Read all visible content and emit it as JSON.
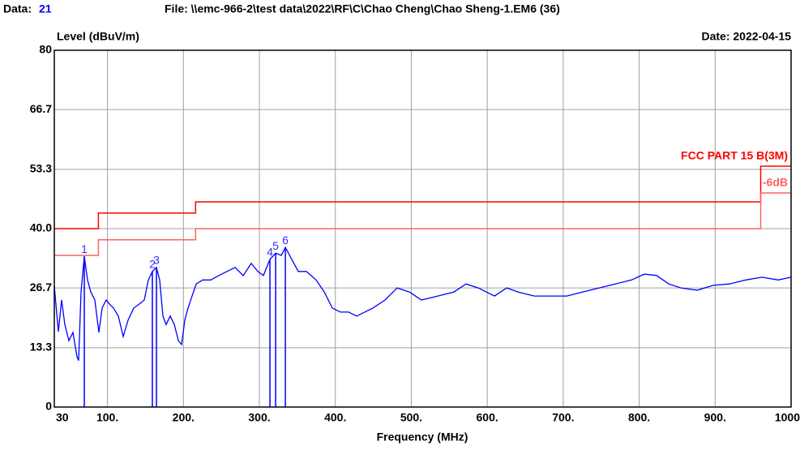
{
  "chart_data": {
    "type": "line",
    "data_label": "Data:",
    "data_number": "21",
    "file": "File: \\\\emc-966-2\\test data\\2022\\RF\\C\\Chao Cheng\\Chao Sheng-1.EM6  (36)",
    "date": "Date: 2022-04-15",
    "y_label": "Level (dBuV/m)",
    "x_label": "Frequency (MHz)",
    "xlim": [
      30,
      1000
    ],
    "ylim": [
      0,
      80
    ],
    "xticks": [
      30,
      {
        "value": 100,
        "label": "100."
      },
      {
        "value": 200,
        "label": "200."
      },
      {
        "value": 300,
        "label": "300."
      },
      {
        "value": 400,
        "label": "400."
      },
      {
        "value": 500,
        "label": "500."
      },
      {
        "value": 600,
        "label": "600."
      },
      {
        "value": 700,
        "label": "700."
      },
      {
        "value": 800,
        "label": "800."
      },
      {
        "value": 900,
        "label": "900."
      },
      1000
    ],
    "yticks": [
      0,
      13.3,
      26.7,
      {
        "value": 40,
        "label": "40.0"
      },
      53.3,
      66.7,
      80
    ],
    "grid": true,
    "series": [
      {
        "color": "#0000ff",
        "x": [
          30.0,
          35.3,
          39.6,
          43.9,
          49.2,
          54.5,
          59.9,
          62.0,
          65.2,
          69.5,
          73.8,
          78.0,
          83.4,
          88.7,
          93.0,
          98.3,
          102.6,
          107.9,
          114.3,
          120.7,
          127.1,
          134.6,
          142.1,
          148.5,
          153.8,
          159.1,
          164.5,
          168.7,
          173.0,
          177.3,
          182.6,
          188.0,
          193.3,
          197.6,
          201.8,
          206.1,
          211.4,
          216.8,
          225.3,
          236.0,
          246.6,
          257.3,
          268.0,
          278.7,
          289.3,
          297.9,
          305.3,
          313.9,
          321.4,
          328.8,
          334.2,
          342.7,
          351.2,
          361.9,
          374.7,
          385.4,
          396.0,
          406.7,
          417.4,
          428.1,
          438.7,
          449.4,
          465.4,
          481.4,
          497.4,
          513.4,
          534.8,
          556.1,
          572.1,
          588.1,
          609.5,
          625.5,
          640.5,
          661.9,
          683.2,
          704.5,
          725.9,
          747.2,
          768.6,
          789.9,
          806.9,
          823.0,
          839.0,
          855.0,
          876.3,
          897.7,
          919.0,
          940.3,
          961.7,
          983.0,
          1000
        ],
        "values": [
          27.1,
          16.9,
          24.0,
          18.5,
          14.9,
          16.7,
          11.3,
          10.4,
          25.8,
          33.8,
          28.5,
          25.8,
          24.0,
          16.7,
          22.2,
          24.0,
          23.1,
          22.2,
          20.4,
          15.8,
          19.5,
          22.2,
          23.1,
          24.0,
          28.5,
          30.4,
          31.3,
          28.5,
          20.4,
          18.5,
          20.4,
          18.5,
          14.9,
          14.0,
          19.5,
          22.2,
          24.9,
          27.6,
          28.5,
          28.5,
          29.5,
          30.4,
          31.3,
          29.5,
          32.2,
          30.4,
          29.5,
          33.1,
          34.5,
          34.0,
          35.8,
          33.1,
          30.4,
          30.4,
          28.5,
          25.8,
          22.2,
          21.3,
          21.3,
          20.4,
          21.3,
          22.2,
          24.0,
          26.7,
          25.8,
          24.0,
          24.9,
          25.8,
          27.6,
          26.7,
          24.9,
          26.7,
          25.8,
          24.9,
          24.9,
          24.9,
          25.8,
          26.7,
          27.6,
          28.5,
          29.8,
          29.5,
          27.6,
          26.7,
          26.2,
          27.3,
          27.6,
          28.5,
          29.1,
          28.5,
          29.1
        ]
      },
      {
        "name": "FCC PART 15 B(3M)",
        "color": "#ff0000",
        "x": [
          30,
          88,
          88,
          216,
          216,
          960,
          960,
          1000
        ],
        "values": [
          40,
          40,
          43.5,
          43.5,
          46,
          46,
          54,
          54
        ]
      },
      {
        "name": "-6dB",
        "color": "#ff6060",
        "x": [
          30,
          88,
          88,
          216,
          216,
          960,
          960,
          1000
        ],
        "values": [
          34,
          34,
          37.5,
          37.5,
          40,
          40,
          48,
          48
        ]
      }
    ],
    "markers": [
      {
        "label": "1",
        "x": 69.5,
        "value": 33.8
      },
      {
        "label": "2",
        "x": 159.1,
        "value": 30.4
      },
      {
        "label": "3",
        "x": 164.5,
        "value": 31.3
      },
      {
        "label": "4",
        "x": 313.9,
        "value": 33.1
      },
      {
        "label": "5",
        "x": 321.4,
        "value": 34.5
      },
      {
        "label": "6",
        "x": 334.2,
        "value": 35.8
      }
    ]
  }
}
